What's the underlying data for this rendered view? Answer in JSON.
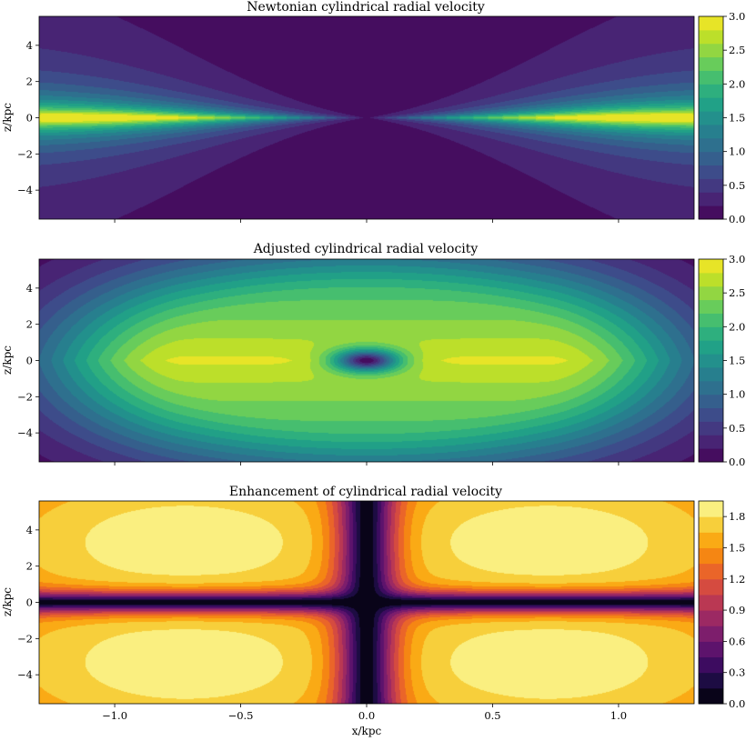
{
  "chart_data": [
    {
      "type": "heatmap",
      "title": "Newtonian cylindrical radial velocity",
      "xlabel": "",
      "ylabel": "z/kpc",
      "xlim": [
        -1.3,
        1.3
      ],
      "ylim": [
        -5.6,
        5.6
      ],
      "x_ticks": [
        -1.0,
        -0.5,
        0.0,
        0.5,
        1.0
      ],
      "x_tick_labels": [
        "",
        "",
        "",
        "",
        ""
      ],
      "y_ticks": [
        -4,
        -2,
        0,
        2,
        4
      ],
      "y_tick_labels": [
        "−4",
        "−2",
        "0",
        "2",
        "4"
      ],
      "colormap": "viridis",
      "colorbar": {
        "range": [
          0.0,
          3.0
        ],
        "ticks": [
          0.0,
          0.5,
          1.0,
          1.5,
          2.0,
          2.5,
          3.0
        ],
        "tick_labels": [
          "0.0",
          "0.5",
          "1.0",
          "1.5",
          "2.0",
          "2.5",
          "3.0"
        ],
        "levels": 15
      },
      "field": {
        "model": "newtonian",
        "peak_value": 2.9,
        "peak_x": 0.72,
        "peak_z": 0.0
      }
    },
    {
      "type": "heatmap",
      "title": "Adjusted cylindrical radial velocity",
      "xlabel": "",
      "ylabel": "z/kpc",
      "xlim": [
        -1.3,
        1.3
      ],
      "ylim": [
        -5.6,
        5.6
      ],
      "x_ticks": [
        -1.0,
        -0.5,
        0.0,
        0.5,
        1.0
      ],
      "x_tick_labels": [
        "",
        "",
        "",
        "",
        ""
      ],
      "y_ticks": [
        -4,
        -2,
        0,
        2,
        4
      ],
      "y_tick_labels": [
        "−4",
        "−2",
        "0",
        "2",
        "4"
      ],
      "colormap": "viridis",
      "colorbar": {
        "range": [
          0.0,
          3.0
        ],
        "ticks": [
          0.0,
          0.5,
          1.0,
          1.5,
          2.0,
          2.5,
          3.0
        ],
        "tick_labels": [
          "0.0",
          "0.5",
          "1.0",
          "1.5",
          "2.0",
          "2.5",
          "3.0"
        ],
        "levels": 15
      },
      "field": {
        "model": "adjusted",
        "peak_value": 2.85,
        "peak_x": 0.72,
        "peak_z": 0.0
      }
    },
    {
      "type": "heatmap",
      "title": "Enhancement of cylindrical radial velocity",
      "xlabel": "x/kpc",
      "ylabel": "z/kpc",
      "xlim": [
        -1.3,
        1.3
      ],
      "ylim": [
        -5.6,
        5.6
      ],
      "x_ticks": [
        -1.0,
        -0.5,
        0.0,
        0.5,
        1.0
      ],
      "x_tick_labels": [
        "−1.0",
        "−0.5",
        "0.0",
        "0.5",
        "1.0"
      ],
      "y_ticks": [
        -4,
        -2,
        0,
        2,
        4
      ],
      "y_tick_labels": [
        "−4",
        "−2",
        "0",
        "2",
        "4"
      ],
      "colormap": "inferno",
      "colorbar": {
        "range": [
          0.0,
          1.95
        ],
        "ticks": [
          0.0,
          0.3,
          0.6,
          0.9,
          1.2,
          1.5,
          1.8
        ],
        "tick_labels": [
          "0.0",
          "0.3",
          "0.6",
          "0.9",
          "1.2",
          "1.5",
          "1.8"
        ],
        "levels": 13
      },
      "field": {
        "model": "enhancement",
        "peak_value": 1.88,
        "peak_x": 0.72,
        "peak_z": 3.5
      }
    }
  ],
  "colormaps": {
    "viridis": [
      "#440154",
      "#482878",
      "#3e4989",
      "#31688e",
      "#26828e",
      "#1f9e89",
      "#35b779",
      "#6ece58",
      "#b5de2b",
      "#fde725"
    ],
    "inferno": [
      "#000004",
      "#1b0c41",
      "#4a0c6b",
      "#781c6d",
      "#a52c60",
      "#cf4446",
      "#ed6925",
      "#fb9b06",
      "#f7d13d",
      "#fcffa4"
    ]
  }
}
